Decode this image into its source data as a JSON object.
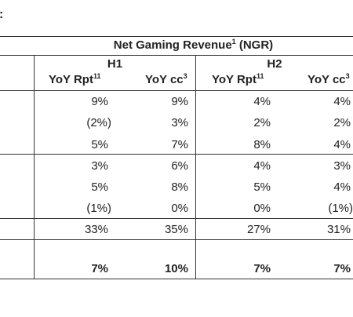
{
  "stray_colon": ":",
  "header": {
    "title": "Net Gaming Revenue",
    "title_sup": "1",
    "title_suffix": " (NGR)",
    "h1": "H1",
    "h2": "H2",
    "col_rpt": "YoY Rpt",
    "col_rpt_sup": "11",
    "col_cc": "YoY cc",
    "col_cc_sup": "3"
  },
  "rows": [
    [
      "9%",
      "9%",
      "4%",
      "4%"
    ],
    [
      "(2%)",
      "3%",
      "2%",
      "2%"
    ],
    [
      "5%",
      "7%",
      "8%",
      "4%"
    ],
    [
      "3%",
      "6%",
      "4%",
      "3%"
    ],
    [
      "5%",
      "8%",
      "5%",
      "4%"
    ],
    [
      "(1%)",
      "0%",
      "0%",
      "(1%)"
    ],
    [
      "33%",
      "35%",
      "27%",
      "31%"
    ],
    [
      "7%",
      "10%",
      "7%",
      "7%"
    ]
  ]
}
